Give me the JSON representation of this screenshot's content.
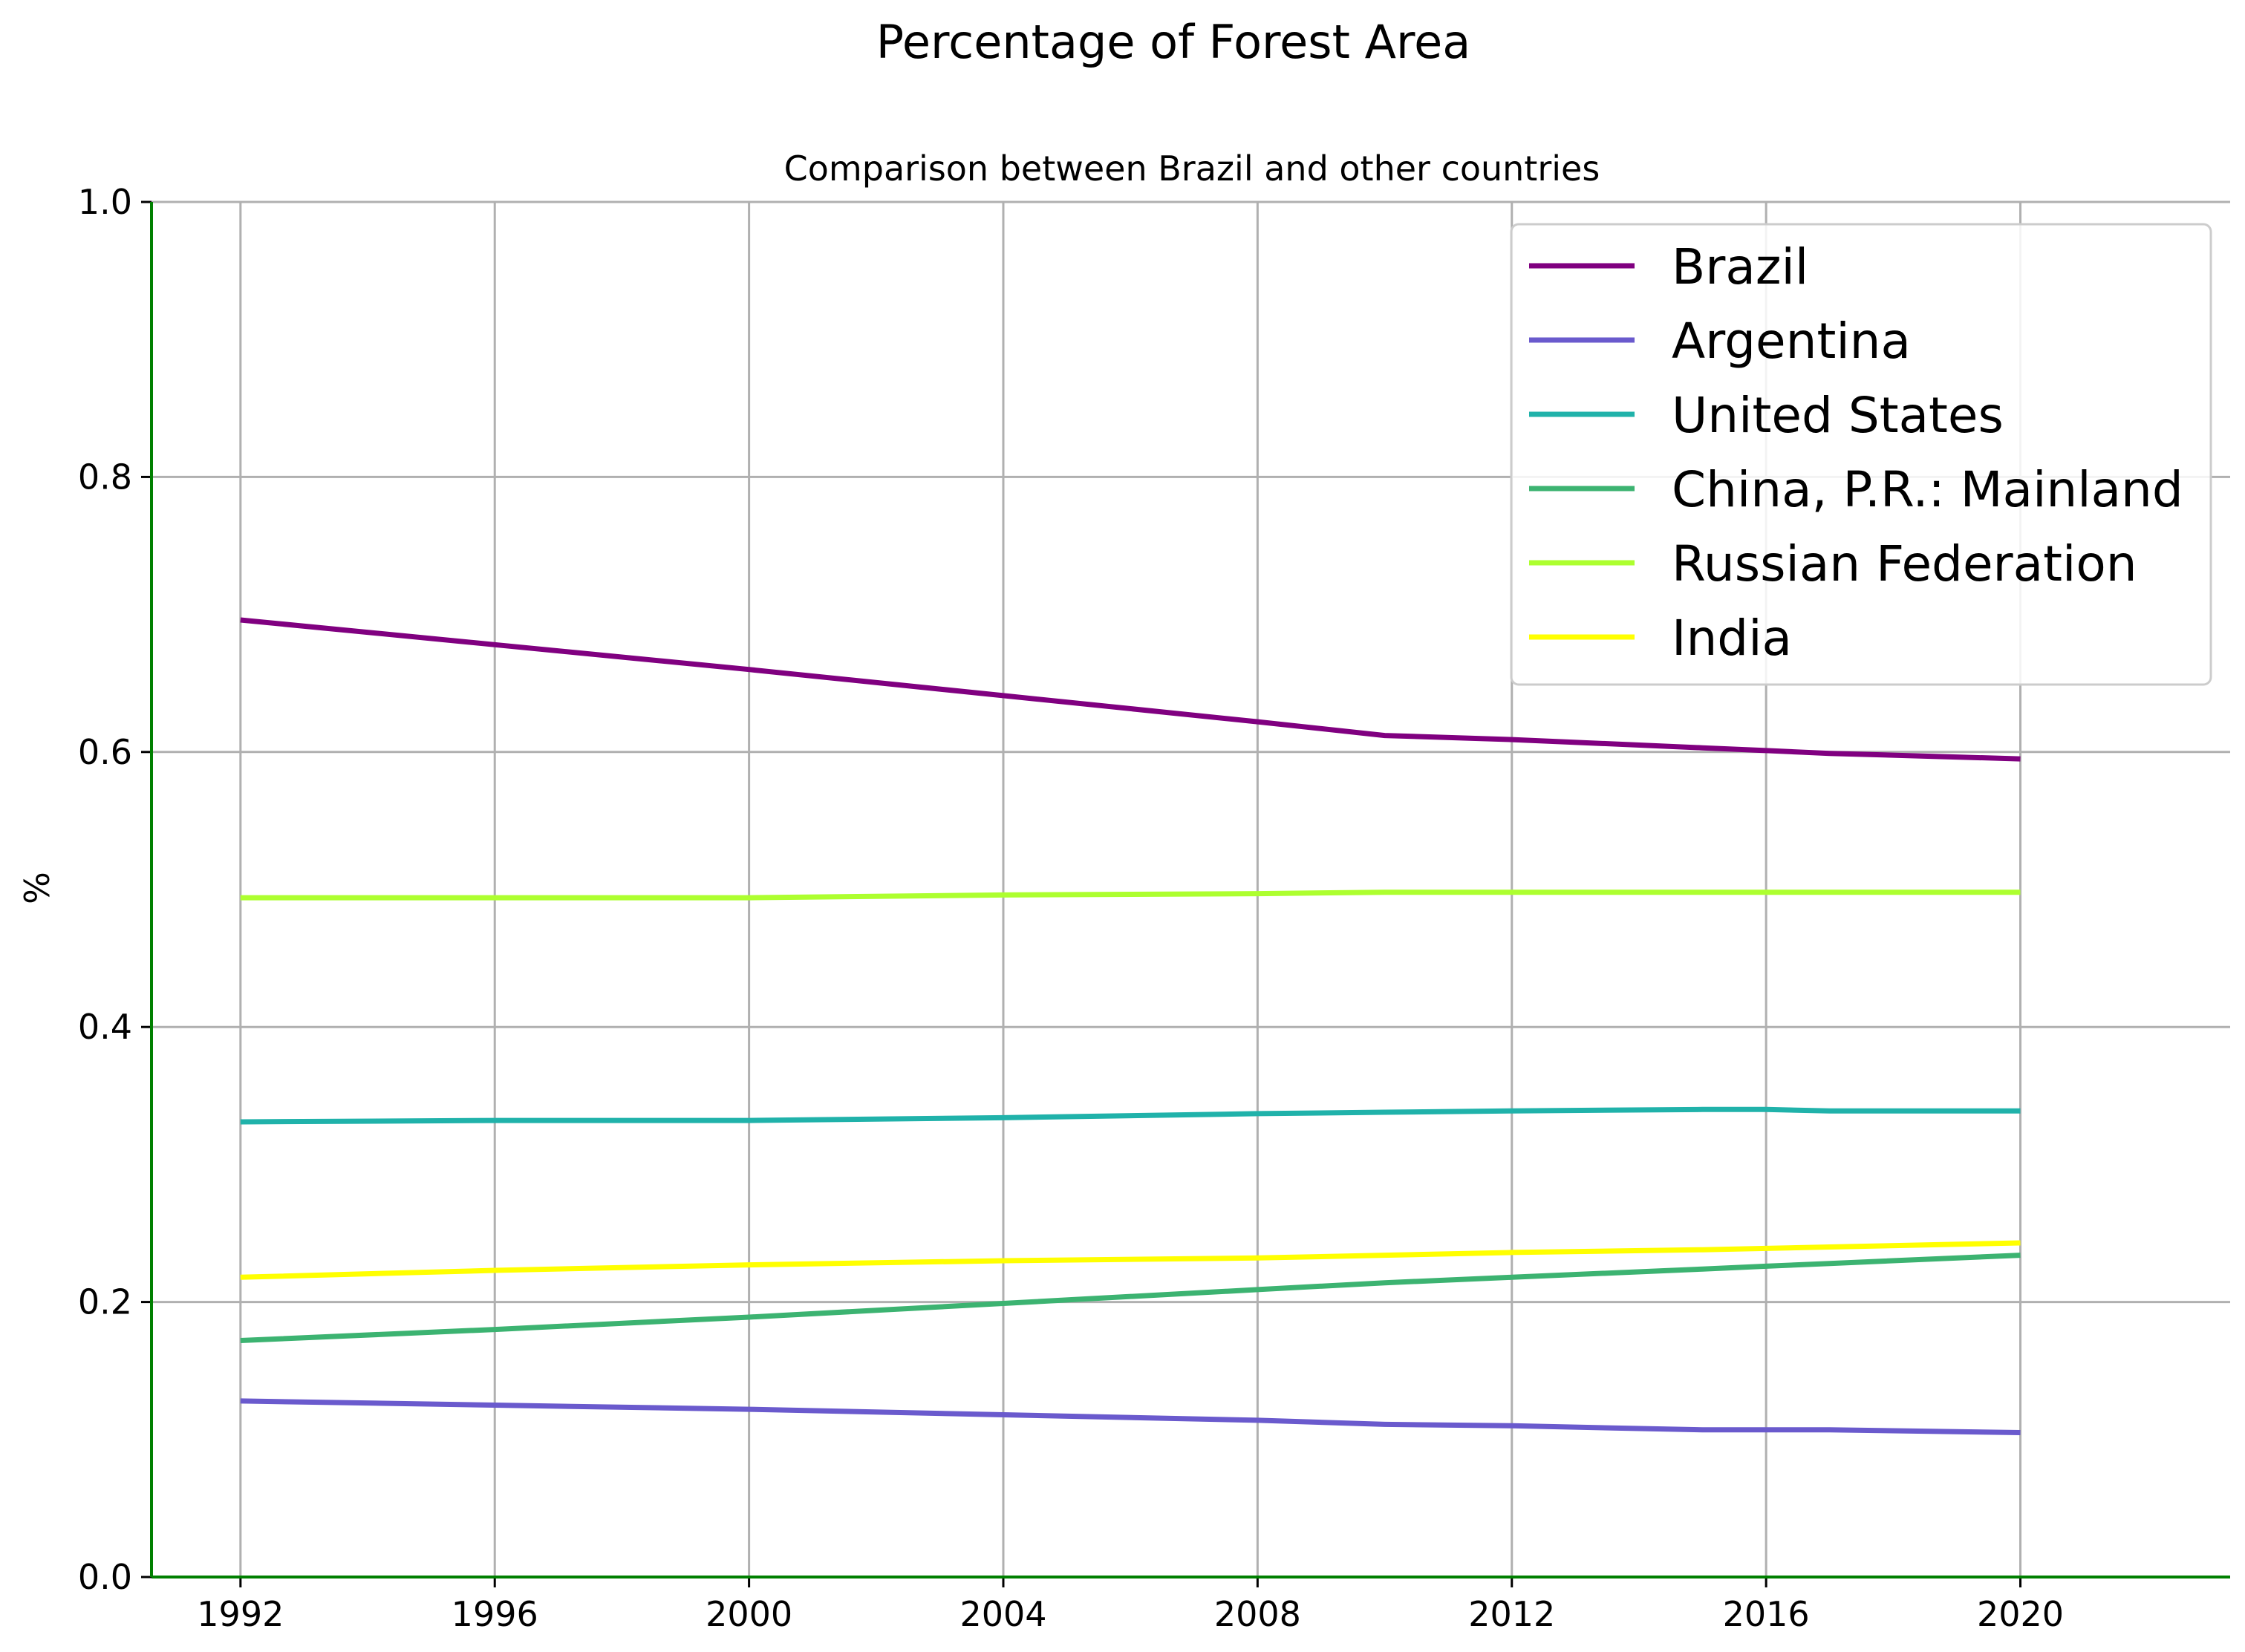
{
  "chart_data": {
    "type": "line",
    "title": "Percentage of Forest Area",
    "subtitle": "Comparison between Brazil and other countries",
    "xlabel": "",
    "ylabel": "%",
    "xlim": [
      1990.6,
      2023.3
    ],
    "ylim": [
      0.0,
      1.0
    ],
    "xticks": [
      1992,
      1996,
      2000,
      2004,
      2008,
      2012,
      2016,
      2020
    ],
    "yticks": [
      0.0,
      0.2,
      0.4,
      0.6,
      0.8,
      1.0
    ],
    "grid": true,
    "legend_position": "top-right",
    "x": [
      1992,
      1996,
      2000,
      2004,
      2008,
      2010,
      2012,
      2015,
      2016,
      2017,
      2020
    ],
    "series": [
      {
        "name": "Brazil",
        "color": "#800080",
        "values": [
          0.696,
          0.678,
          0.66,
          0.641,
          0.622,
          0.612,
          0.609,
          0.603,
          0.601,
          0.599,
          0.595
        ]
      },
      {
        "name": "Argentina",
        "color": "#6a5acd",
        "values": [
          0.128,
          0.125,
          0.122,
          0.118,
          0.114,
          0.111,
          0.11,
          0.107,
          0.107,
          0.107,
          0.105
        ]
      },
      {
        "name": "United States",
        "color": "#20b2aa",
        "values": [
          0.331,
          0.332,
          0.332,
          0.334,
          0.337,
          0.338,
          0.339,
          0.34,
          0.34,
          0.339,
          0.339
        ]
      },
      {
        "name": "China, P.R.: Mainland",
        "color": "#3cb371",
        "values": [
          0.172,
          0.18,
          0.189,
          0.199,
          0.209,
          0.214,
          0.218,
          0.224,
          0.226,
          0.228,
          0.234
        ]
      },
      {
        "name": "Russian Federation",
        "color": "#adff2f",
        "values": [
          0.494,
          0.494,
          0.494,
          0.496,
          0.497,
          0.498,
          0.498,
          0.498,
          0.498,
          0.498,
          0.498
        ]
      },
      {
        "name": "India",
        "color": "#ffff00",
        "values": [
          0.218,
          0.223,
          0.227,
          0.23,
          0.232,
          0.234,
          0.236,
          0.238,
          0.239,
          0.24,
          0.243
        ]
      }
    ]
  }
}
